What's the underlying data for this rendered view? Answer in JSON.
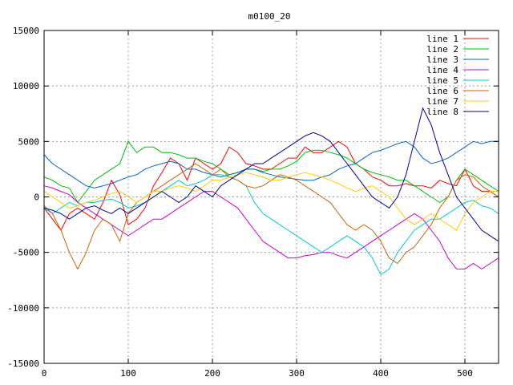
{
  "chart_data": {
    "type": "line",
    "title": "m0100_20",
    "xlabel": "",
    "ylabel": "",
    "xlim": [
      0,
      540
    ],
    "ylim": [
      -15000,
      15000
    ],
    "x_ticks": [
      0,
      100,
      200,
      300,
      400,
      500
    ],
    "y_ticks": [
      -15000,
      -10000,
      -5000,
      0,
      5000,
      10000,
      15000
    ],
    "grid": true,
    "legend_position": "top-right",
    "x": [
      0,
      10,
      20,
      30,
      40,
      50,
      60,
      70,
      80,
      90,
      100,
      110,
      120,
      130,
      140,
      150,
      160,
      170,
      180,
      190,
      200,
      210,
      220,
      230,
      240,
      250,
      260,
      270,
      280,
      290,
      300,
      310,
      320,
      330,
      340,
      350,
      360,
      370,
      380,
      390,
      400,
      410,
      420,
      430,
      440,
      450,
      460,
      470,
      480,
      490,
      500,
      510,
      520,
      530,
      540
    ],
    "series": [
      {
        "name": "line 1",
        "color": "#ff0000",
        "values": [
          -1000,
          -2000,
          -3000,
          -1500,
          -1000,
          -1500,
          -2000,
          -500,
          1500,
          200,
          -2500,
          -2000,
          -1000,
          1000,
          2200,
          3500,
          3000,
          1500,
          3500,
          3000,
          2500,
          3000,
          4500,
          4000,
          3000,
          2800,
          2500,
          2500,
          3000,
          3500,
          3500,
          4500,
          4000,
          4000,
          4500,
          5000,
          4500,
          3000,
          2500,
          1800,
          1500,
          1000,
          1000,
          1200,
          1000,
          1000,
          800,
          1500,
          1200,
          1000,
          2500,
          1000,
          500,
          500,
          0
        ]
      },
      {
        "name": "line 2",
        "color": "#00c000",
        "values": [
          1800,
          1500,
          1000,
          800,
          -500,
          500,
          1500,
          2000,
          2500,
          3000,
          5000,
          4000,
          4500,
          4500,
          4000,
          4000,
          3800,
          3500,
          3500,
          3200,
          3000,
          2500,
          2000,
          2200,
          2500,
          2500,
          2300,
          2500,
          2500,
          2800,
          3200,
          4000,
          4200,
          4200,
          4000,
          3800,
          3500,
          3000,
          2500,
          2200,
          2000,
          1800,
          1500,
          1500,
          1000,
          500,
          0,
          -500,
          0,
          1500,
          2500,
          2000,
          1500,
          1000,
          500
        ]
      },
      {
        "name": "line 3",
        "color": "#0066cc",
        "values": [
          3800,
          3000,
          2500,
          2000,
          1500,
          1000,
          800,
          1000,
          1200,
          1500,
          1800,
          2000,
          2500,
          2800,
          3000,
          3200,
          3000,
          2500,
          2500,
          2200,
          2000,
          1800,
          2000,
          2200,
          2500,
          2500,
          2200,
          2000,
          1800,
          1700,
          1600,
          1500,
          1500,
          1800,
          2000,
          2500,
          2800,
          3000,
          3500,
          4000,
          4200,
          4500,
          4800,
          5000,
          4500,
          3500,
          3000,
          3200,
          3500,
          4000,
          4500,
          5000,
          4800,
          5000,
          5000
        ]
      },
      {
        "name": "line 4",
        "color": "#cc00cc",
        "values": [
          1000,
          800,
          500,
          200,
          -500,
          -1000,
          -1500,
          -2000,
          -2500,
          -3000,
          -3500,
          -3000,
          -2500,
          -2000,
          -2000,
          -1500,
          -1000,
          -500,
          0,
          500,
          500,
          0,
          -500,
          -1000,
          -2000,
          -3000,
          -4000,
          -4500,
          -5000,
          -5500,
          -5500,
          -5300,
          -5200,
          -5000,
          -5000,
          -5300,
          -5500,
          -5000,
          -4500,
          -4000,
          -3500,
          -3000,
          -2500,
          -2000,
          -1500,
          -2000,
          -3000,
          -4000,
          -5500,
          -6500,
          -6500,
          -6000,
          -6500,
          -6000,
          -5500
        ]
      },
      {
        "name": "line 5",
        "color": "#00cccc",
        "values": [
          -1000,
          -1500,
          -1000,
          -500,
          -800,
          -500,
          -500,
          -300,
          -200,
          -500,
          -1000,
          -800,
          -500,
          0,
          500,
          1000,
          1500,
          1000,
          1200,
          1500,
          2000,
          2000,
          1800,
          1500,
          1000,
          -500,
          -1500,
          -2000,
          -2500,
          -3000,
          -3500,
          -4000,
          -4500,
          -5000,
          -4500,
          -4000,
          -3500,
          -4000,
          -4500,
          -5500,
          -7000,
          -6500,
          -5000,
          -4000,
          -3000,
          -2500,
          -2000,
          -2000,
          -1500,
          -1000,
          -500,
          -300,
          -800,
          -1000,
          -1500
        ]
      },
      {
        "name": "line 6",
        "color": "#cc6600",
        "values": [
          -800,
          -1500,
          -3000,
          -5000,
          -6500,
          -5000,
          -3000,
          -2000,
          -2500,
          -4000,
          -1500,
          -500,
          0,
          500,
          1000,
          1500,
          2000,
          2500,
          3000,
          2500,
          2000,
          2500,
          1800,
          1500,
          1000,
          800,
          1000,
          1500,
          2000,
          1800,
          1500,
          1000,
          500,
          0,
          -500,
          -1500,
          -2500,
          -3000,
          -2500,
          -3000,
          -4000,
          -5500,
          -6000,
          -5000,
          -4500,
          -3500,
          -2500,
          -1000,
          0,
          1500,
          2000,
          1800,
          1000,
          500,
          0
        ]
      },
      {
        "name": "line 7",
        "color": "#ffcc00",
        "values": [
          500,
          0,
          -500,
          -1000,
          -800,
          -500,
          -300,
          0,
          300,
          500,
          0,
          -500,
          0,
          500,
          500,
          800,
          1000,
          800,
          500,
          1000,
          1500,
          1500,
          1800,
          2000,
          2200,
          2000,
          1800,
          1500,
          1500,
          1800,
          2000,
          2200,
          2000,
          1800,
          1500,
          1200,
          800,
          500,
          800,
          1000,
          500,
          0,
          -1000,
          -2000,
          -2500,
          -2000,
          -1500,
          -2000,
          -2500,
          -3000,
          -1500,
          -500,
          0,
          500,
          500
        ]
      },
      {
        "name": "line 8",
        "color": "#000099",
        "values": [
          -1000,
          -1200,
          -1500,
          -2000,
          -1500,
          -1000,
          -800,
          -1200,
          -1500,
          -1000,
          -1500,
          -1000,
          -500,
          0,
          500,
          0,
          -500,
          0,
          1000,
          500,
          0,
          1000,
          1500,
          2000,
          2500,
          3000,
          3000,
          3500,
          4000,
          4500,
          5000,
          5500,
          5800,
          5500,
          5000,
          4000,
          3000,
          2000,
          1000,
          0,
          -500,
          -1000,
          0,
          2000,
          5000,
          8000,
          6500,
          4000,
          2000,
          0,
          -1000,
          -2000,
          -3000,
          -3500,
          -4000
        ]
      }
    ]
  }
}
